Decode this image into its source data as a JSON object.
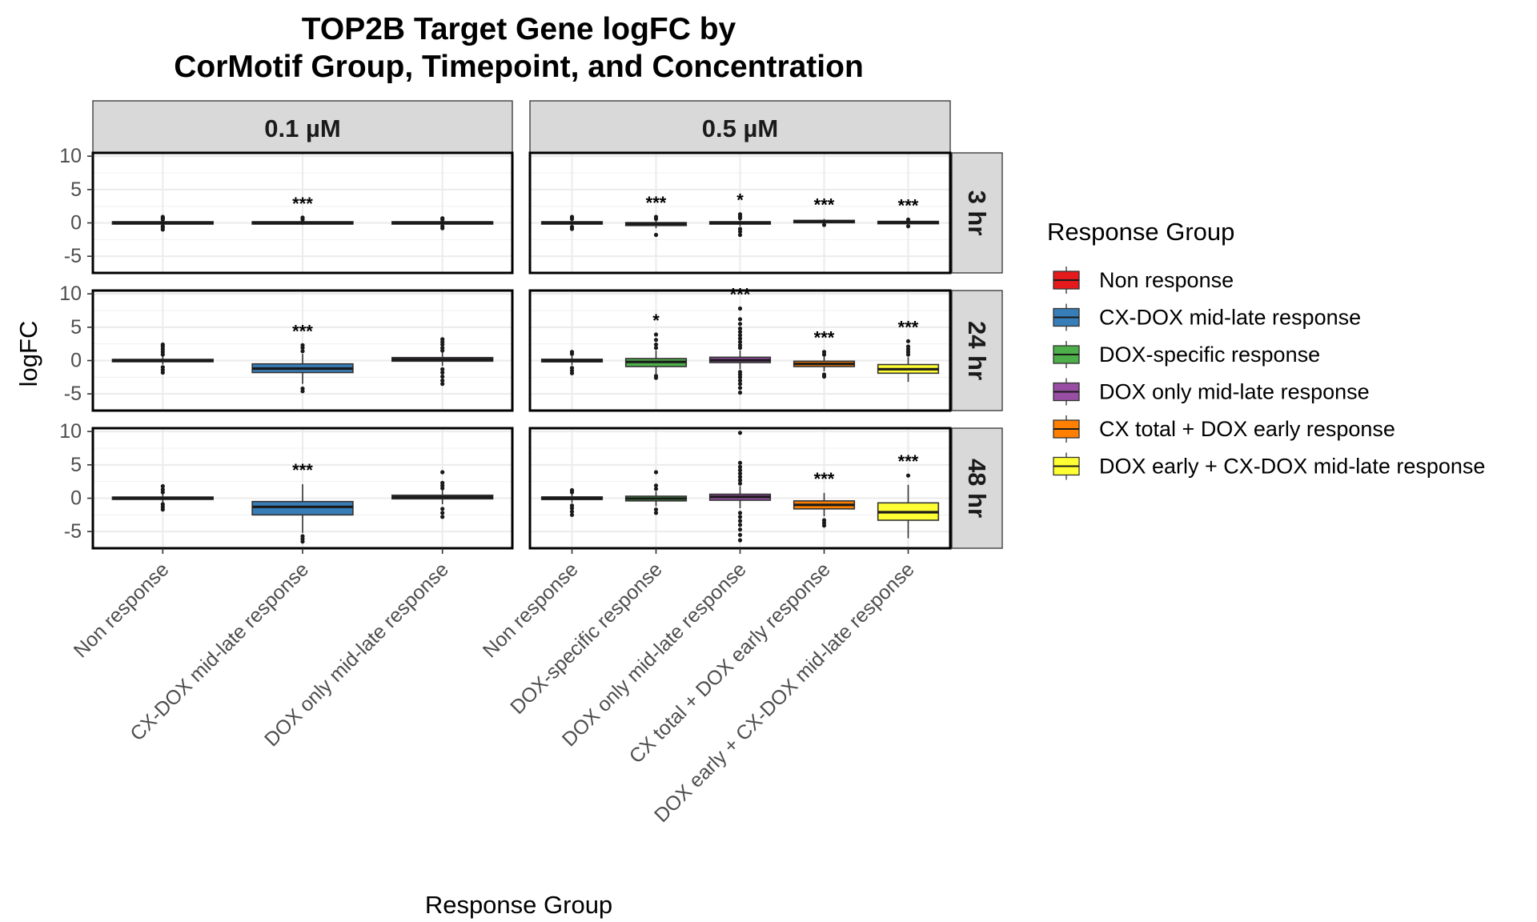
{
  "chart_data": {
    "type": "boxplot",
    "title": "TOP2B Target Gene logFC by",
    "subtitle": "CorMotif Group, Timepoint, and Concentration",
    "xlabel": "Response Group",
    "ylabel": "logFC",
    "ylim": [
      -7.5,
      10.5
    ],
    "yticks": [
      10,
      5,
      0,
      -5
    ],
    "grid": true,
    "legend": {
      "title": "Response Group",
      "position": "right",
      "entries": [
        {
          "name": "Non response",
          "color": "#E41A1C"
        },
        {
          "name": "CX-DOX mid-late response",
          "color": "#377EB8"
        },
        {
          "name": "DOX-specific response",
          "color": "#4DAF4A"
        },
        {
          "name": "DOX only mid-late response",
          "color": "#984EA3"
        },
        {
          "name": "CX total + DOX early response",
          "color": "#FF7F00"
        },
        {
          "name": "DOX early + CX-DOX mid-late response",
          "color": "#FFFF33"
        }
      ]
    },
    "columns": [
      {
        "label": "0.1 µM",
        "categories": [
          "Non response",
          "CX-DOX mid-late response",
          "DOX only mid-late response"
        ]
      },
      {
        "label": "0.5 µM",
        "categories": [
          "Non response",
          "DOX-specific response",
          "DOX only mid-late response",
          "CX total + DOX early response",
          "DOX early + CX-DOX mid-late response"
        ]
      }
    ],
    "rows": [
      {
        "label": "3 hr"
      },
      {
        "label": "24 hr"
      },
      {
        "label": "48 hr"
      }
    ],
    "panels": [
      {
        "row": 0,
        "col": 0,
        "boxes": [
          {
            "group": "Non response",
            "q1": -0.1,
            "median": 0,
            "q3": 0.1,
            "wlo": -0.3,
            "whi": 0.3,
            "outliers": [
              -1.0,
              -0.7,
              -0.5,
              0.5,
              0.7,
              0.9
            ],
            "sig": ""
          },
          {
            "group": "CX-DOX mid-late response",
            "q1": -0.1,
            "median": 0,
            "q3": 0.1,
            "wlo": -0.3,
            "whi": 0.3,
            "outliers": [
              0.5,
              0.8
            ],
            "sig": "***"
          },
          {
            "group": "DOX only mid-late response",
            "q1": -0.1,
            "median": 0,
            "q3": 0.1,
            "wlo": -0.3,
            "whi": 0.3,
            "outliers": [
              -0.8,
              -0.5,
              0.5,
              0.7
            ],
            "sig": ""
          }
        ]
      },
      {
        "row": 0,
        "col": 1,
        "boxes": [
          {
            "group": "Non response",
            "q1": -0.1,
            "median": 0,
            "q3": 0.1,
            "wlo": -0.4,
            "whi": 0.4,
            "outliers": [
              -0.9,
              -0.6,
              0.6,
              0.9
            ],
            "sig": ""
          },
          {
            "group": "DOX-specific response",
            "q1": -0.4,
            "median": -0.15,
            "q3": 0.05,
            "wlo": -0.8,
            "whi": 0.3,
            "outliers": [
              -1.8,
              0.6,
              0.9
            ],
            "sig": "***"
          },
          {
            "group": "DOX only mid-late response",
            "q1": -0.15,
            "median": 0,
            "q3": 0.15,
            "wlo": -0.5,
            "whi": 0.5,
            "outliers": [
              -1.8,
              -1.3,
              -0.9,
              0.7,
              1.0,
              1.3
            ],
            "sig": "*"
          },
          {
            "group": "CX total + DOX early response",
            "q1": 0.05,
            "median": 0.2,
            "q3": 0.35,
            "wlo": -0.1,
            "whi": 0.6,
            "outliers": [
              -0.3
            ],
            "sig": "***"
          },
          {
            "group": "DOX early + CX-DOX mid-late response",
            "q1": -0.05,
            "median": 0.05,
            "q3": 0.15,
            "wlo": -0.25,
            "whi": 0.35,
            "outliers": [
              -0.5,
              0.5
            ],
            "sig": "***"
          }
        ]
      },
      {
        "row": 1,
        "col": 0,
        "boxes": [
          {
            "group": "Non response",
            "q1": -0.15,
            "median": 0,
            "q3": 0.15,
            "wlo": -0.6,
            "whi": 0.6,
            "outliers": [
              -1.8,
              -1.4,
              -1.0,
              0.9,
              1.3,
              1.7,
              2.1,
              2.4
            ],
            "sig": ""
          },
          {
            "group": "CX-DOX mid-late response",
            "q1": -1.8,
            "median": -1.2,
            "q3": -0.5,
            "wlo": -3.5,
            "whi": 1.0,
            "outliers": [
              -4.6,
              -4.2,
              1.4,
              1.9,
              2.3
            ],
            "sig": "***"
          },
          {
            "group": "DOX only mid-late response",
            "q1": -0.1,
            "median": 0.15,
            "q3": 0.45,
            "wlo": -0.8,
            "whi": 1.2,
            "outliers": [
              -3.5,
              -3.0,
              -2.4,
              -1.8,
              -1.3,
              1.5,
              1.9,
              2.4,
              2.8,
              3.2
            ],
            "sig": ""
          }
        ]
      },
      {
        "row": 1,
        "col": 1,
        "boxes": [
          {
            "group": "Non response",
            "q1": -0.2,
            "median": 0,
            "q3": 0.2,
            "wlo": -0.7,
            "whi": 0.7,
            "outliers": [
              -1.9,
              -1.5,
              -1.1,
              1.0,
              1.3
            ],
            "sig": ""
          },
          {
            "group": "DOX-specific response",
            "q1": -0.9,
            "median": -0.2,
            "q3": 0.3,
            "wlo": -2.0,
            "whi": 1.5,
            "outliers": [
              -2.6,
              -2.3,
              1.9,
              2.4,
              3.1,
              3.9
            ],
            "sig": "*"
          },
          {
            "group": "DOX only mid-late response",
            "q1": -0.3,
            "median": 0.05,
            "q3": 0.5,
            "wlo": -1.3,
            "whi": 1.5,
            "outliers": [
              -4.8,
              -4.1,
              -3.5,
              -3.0,
              -2.5,
              -2.1,
              -1.7,
              1.9,
              2.3,
              2.8,
              3.3,
              3.8,
              4.3,
              4.8,
              5.5,
              6.2,
              7.8
            ],
            "sig": "***"
          },
          {
            "group": "CX total + DOX early response",
            "q1": -0.9,
            "median": -0.5,
            "q3": -0.1,
            "wlo": -1.6,
            "whi": 0.6,
            "outliers": [
              -2.4,
              -2.1,
              0.9,
              1.3
            ],
            "sig": "***"
          },
          {
            "group": "DOX early + CX-DOX mid-late response",
            "q1": -1.9,
            "median": -1.3,
            "q3": -0.6,
            "wlo": -3.2,
            "whi": 0.5,
            "outliers": [
              0.9,
              1.3,
              1.7,
              2.1,
              2.9
            ],
            "sig": "***"
          }
        ]
      },
      {
        "row": 2,
        "col": 0,
        "boxes": [
          {
            "group": "Non response",
            "q1": -0.15,
            "median": 0,
            "q3": 0.15,
            "wlo": -0.6,
            "whi": 0.6,
            "outliers": [
              -1.7,
              -1.3,
              -0.9,
              0.9,
              1.3,
              1.8
            ],
            "sig": ""
          },
          {
            "group": "CX-DOX mid-late response",
            "q1": -2.5,
            "median": -1.3,
            "q3": -0.5,
            "wlo": -5.2,
            "whi": 2.1,
            "outliers": [
              -6.5,
              -6.1,
              -5.7
            ],
            "sig": "***"
          },
          {
            "group": "DOX only mid-late response",
            "q1": -0.1,
            "median": 0.15,
            "q3": 0.45,
            "wlo": -0.9,
            "whi": 1.2,
            "outliers": [
              -2.8,
              -2.2,
              -1.6,
              1.5,
              1.9,
              2.3,
              3.9
            ],
            "sig": ""
          }
        ]
      },
      {
        "row": 2,
        "col": 1,
        "boxes": [
          {
            "group": "Non response",
            "q1": -0.2,
            "median": 0,
            "q3": 0.2,
            "wlo": -0.7,
            "whi": 0.7,
            "outliers": [
              -2.5,
              -2.0,
              -1.5,
              -1.1,
              0.9,
              1.2
            ],
            "sig": ""
          },
          {
            "group": "DOX-specific response",
            "q1": -0.4,
            "median": -0.05,
            "q3": 0.3,
            "wlo": -1.2,
            "whi": 1.0,
            "outliers": [
              -2.2,
              -1.7,
              1.4,
              1.9,
              3.9
            ],
            "sig": ""
          },
          {
            "group": "DOX only mid-late response",
            "q1": -0.3,
            "median": 0.2,
            "q3": 0.6,
            "wlo": -1.5,
            "whi": 1.8,
            "outliers": [
              -6.3,
              -5.5,
              -4.7,
              -4.0,
              -3.4,
              -2.8,
              -2.2,
              2.2,
              2.7,
              3.2,
              3.7,
              4.2,
              4.7,
              5.3,
              9.8
            ],
            "sig": ""
          },
          {
            "group": "CX total + DOX early response",
            "q1": -1.6,
            "median": -1.0,
            "q3": -0.4,
            "wlo": -2.7,
            "whi": 0.8,
            "outliers": [
              -4.1,
              -3.7,
              -3.3
            ],
            "sig": "***"
          },
          {
            "group": "DOX early + CX-DOX mid-late response",
            "q1": -3.3,
            "median": -2.1,
            "q3": -0.7,
            "wlo": -6.0,
            "whi": 2.0,
            "outliers": [
              3.4
            ],
            "sig": "***"
          }
        ]
      }
    ]
  }
}
